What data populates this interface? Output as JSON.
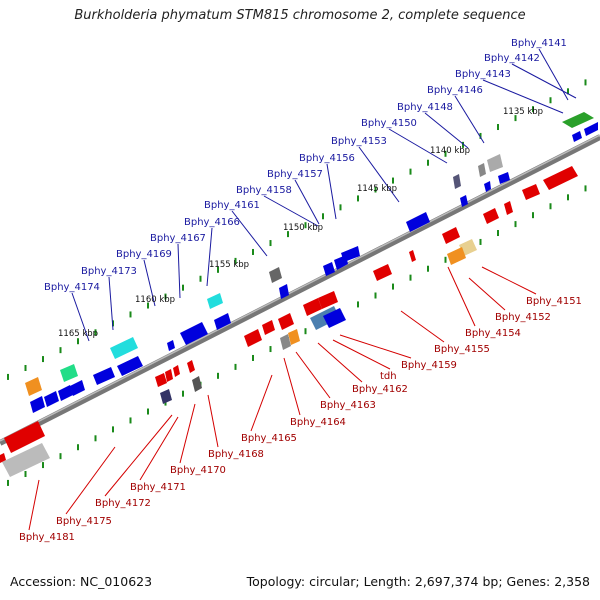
{
  "title": "Burkholderia phymatum STM815 chromosome 2, complete sequence",
  "footer": {
    "accession": "Accession: NC_010623",
    "summary": "Topology: circular; Length: 2,697,374 bp; Genes: 2,358"
  },
  "kbp_ticks": [
    "1135 kbp",
    "1140 kbp",
    "1145 kbp",
    "1150 kbp",
    "1155 kbp",
    "1160 kbp",
    "1165 kbp"
  ],
  "top_labels": [
    "Bphy_4141",
    "Bphy_4142",
    "Bphy_4143",
    "Bphy_4146",
    "Bphy_4148",
    "Bphy_4150",
    "Bphy_4153",
    "Bphy_4156",
    "Bphy_4157",
    "Bphy_4158",
    "Bphy_4161",
    "Bphy_4166",
    "Bphy_4167",
    "Bphy_4169",
    "Bphy_4173",
    "Bphy_4174"
  ],
  "bottom_labels": [
    "Bphy_4151",
    "Bphy_4152",
    "Bphy_4154",
    "Bphy_4155",
    "Bphy_4159",
    "tdh",
    "Bphy_4162",
    "Bphy_4163",
    "Bphy_4164",
    "Bphy_4165",
    "Bphy_4168",
    "Bphy_4170",
    "Bphy_4171",
    "Bphy_4172",
    "Bphy_4175",
    "Bphy_4181"
  ],
  "colors": {
    "top_label": "#1a1aa0",
    "bottom_label": "#a10000",
    "forward_gene": "#e00000",
    "reverse_gene": "#0000dd",
    "tick": "#1a8a1a"
  }
}
